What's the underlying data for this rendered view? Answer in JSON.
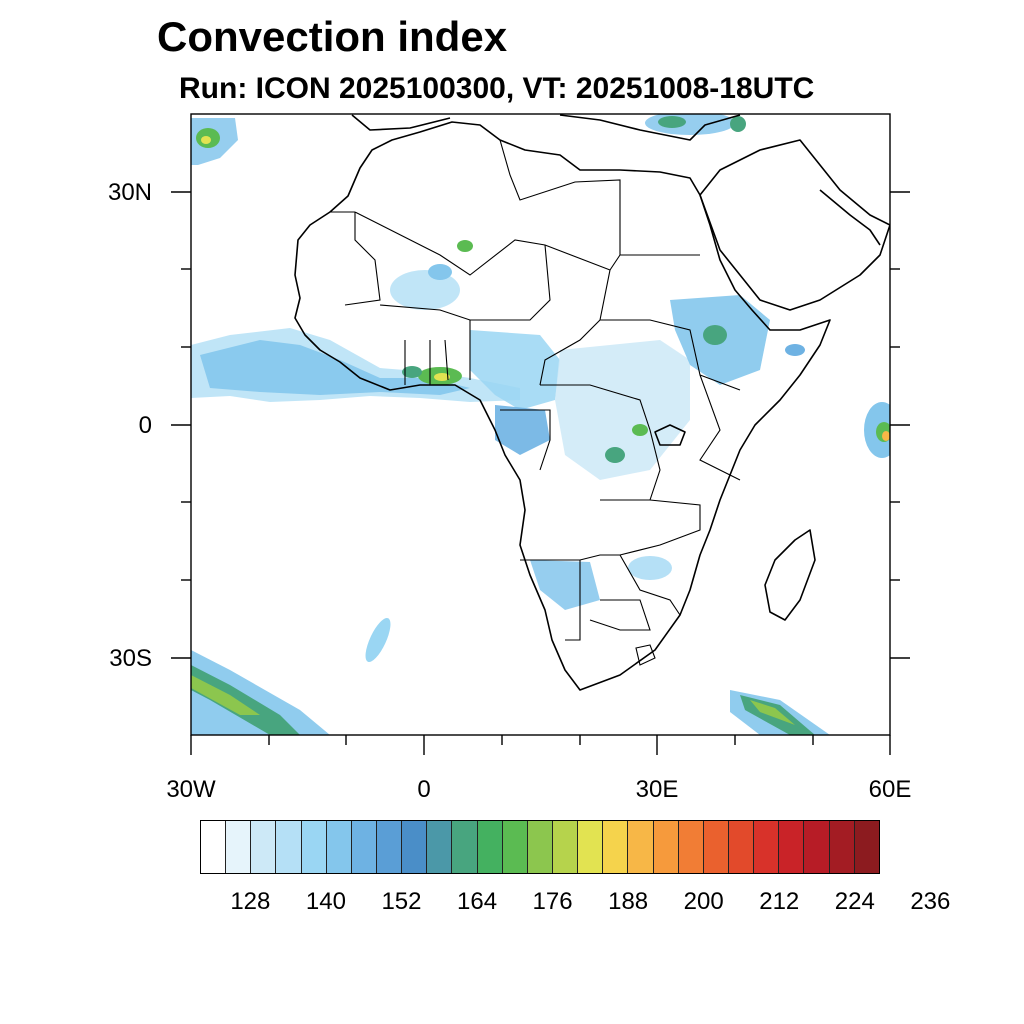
{
  "header": {
    "title": "Convection index",
    "subtitle": "Run: ICON 2025100300,  VT: 20251008-18UTC"
  },
  "map": {
    "projection": "lat-lon",
    "lon_range": [
      -30,
      60
    ],
    "lat_range": [
      -40,
      40
    ],
    "lat_labels": [
      {
        "text": "30N",
        "lat": 30
      },
      {
        "text": "0",
        "lat": 0
      },
      {
        "text": "30S",
        "lat": -30
      }
    ],
    "lon_labels": [
      {
        "text": "30W",
        "lon": -30
      },
      {
        "text": "0",
        "lon": 0
      },
      {
        "text": "30E",
        "lon": 30
      },
      {
        "text": "60E",
        "lon": 60
      }
    ]
  },
  "colorbar": {
    "colors": [
      "#ffffff",
      "#e6f4fb",
      "#cde9f7",
      "#b5e0f6",
      "#9ad6f3",
      "#84c6ec",
      "#6eb2e3",
      "#5a9ed6",
      "#4a8ec8",
      "#4b98a8",
      "#48a57f",
      "#44b160",
      "#5bbb52",
      "#8cc64e",
      "#b6d34c",
      "#e2e351",
      "#f5d34c",
      "#f7b747",
      "#f69a3c",
      "#f17d35",
      "#ea612e",
      "#e24a2b",
      "#d8322a",
      "#c92328",
      "#b71c26",
      "#a31c23",
      "#8c1b1f"
    ],
    "tick_labels": [
      "128",
      "140",
      "152",
      "164",
      "176",
      "188",
      "200",
      "212",
      "224",
      "236"
    ]
  }
}
